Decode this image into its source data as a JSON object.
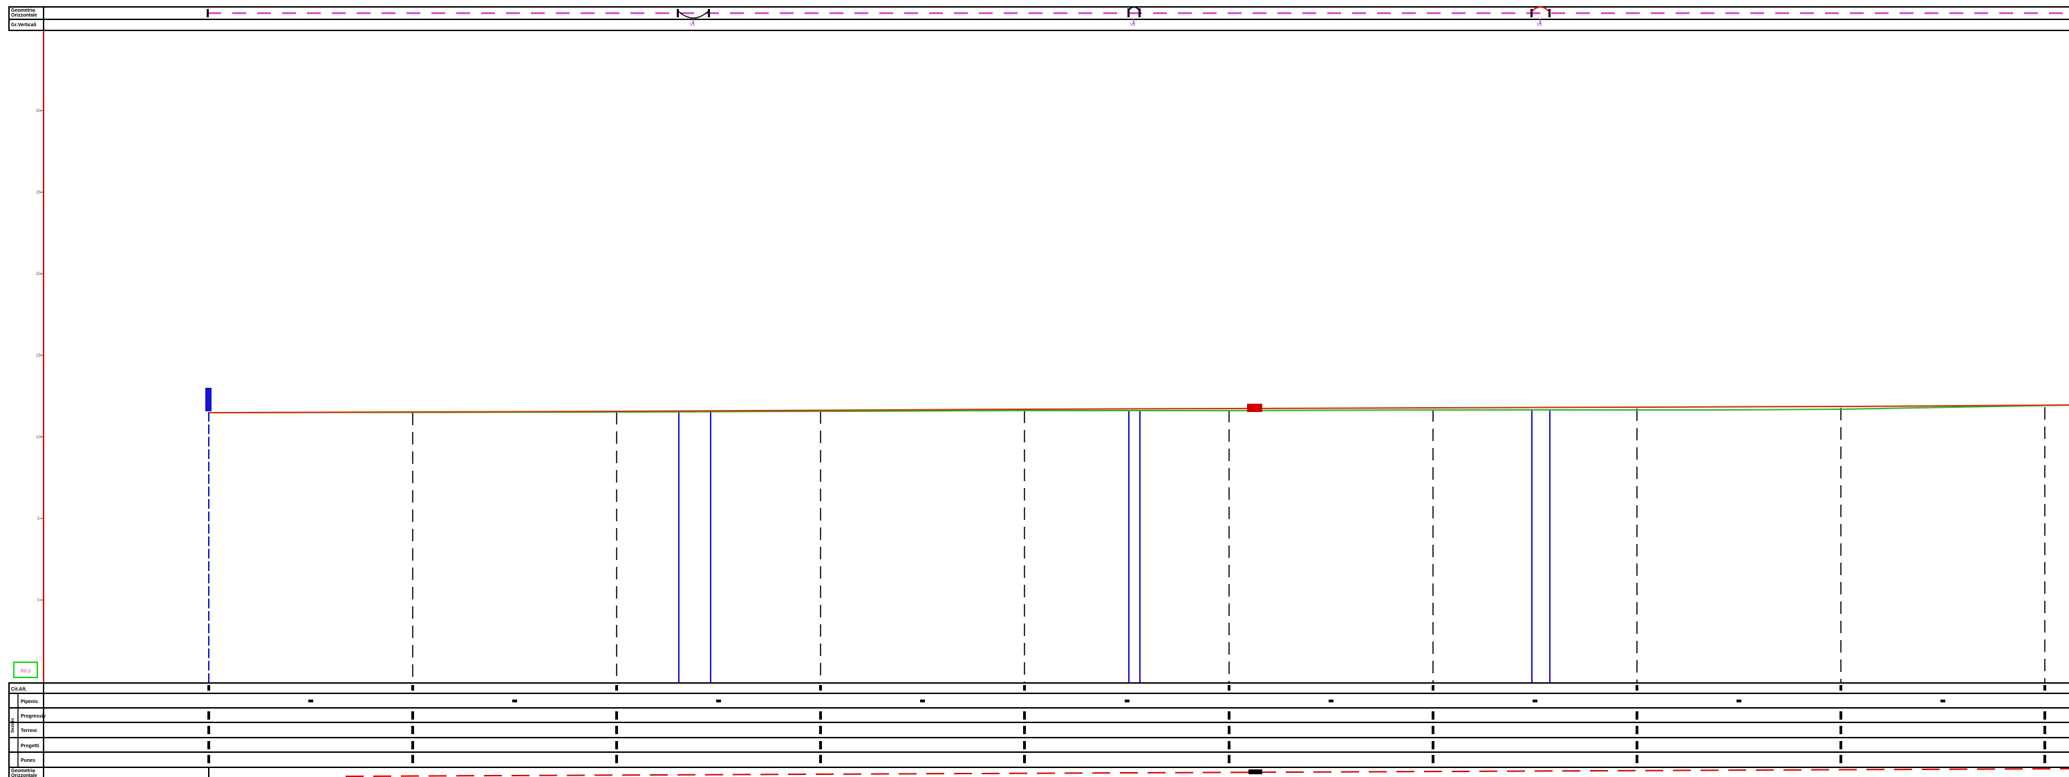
{
  "header_rows": {
    "horizontal": "Geometria\nOrizzontale",
    "vertical": "Gr.Verticali"
  },
  "bottom_rows": {
    "row1": "Cit.Alt.",
    "row2": "Pipenis",
    "row3": "Progressiv",
    "row4": "Terreni",
    "row5": "Progetti",
    "row6": "Punes",
    "row7": "Geometria\nOrizzontale",
    "side_group": "Sezioni"
  },
  "y_axis_ticks": [
    "30",
    "25",
    "20",
    "15",
    "10",
    "5",
    "0"
  ],
  "vertical_curve_tags": [
    "V1",
    "V2",
    "V3"
  ],
  "datum_box": "Rif.0",
  "colors": {
    "axis": "#d40000",
    "design_line": "#cc3300",
    "terrain_line": "#2db52d",
    "structure": "#1414d6",
    "horizontal_geometry": "#d63ad6",
    "bottom_geometry": "#d40000",
    "grid": "#333333",
    "datum_box": "#14d614"
  }
}
